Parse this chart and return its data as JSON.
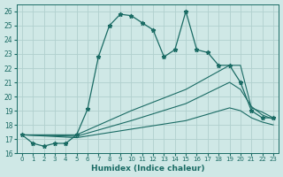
{
  "title": "",
  "xlabel": "Humidex (Indice chaleur)",
  "xlim": [
    -0.5,
    23.5
  ],
  "ylim": [
    16,
    26.5
  ],
  "xticks": [
    0,
    1,
    2,
    3,
    4,
    5,
    6,
    7,
    8,
    9,
    10,
    11,
    12,
    13,
    14,
    15,
    16,
    17,
    18,
    19,
    20,
    21,
    22,
    23
  ],
  "yticks": [
    16,
    17,
    18,
    19,
    20,
    21,
    22,
    23,
    24,
    25,
    26
  ],
  "bg_color": "#cfe8e6",
  "grid_color": "#b0d0ce",
  "line_color": "#1a6b64",
  "line1_x": [
    0,
    1,
    2,
    3,
    4,
    5,
    6,
    7,
    8,
    9,
    10,
    11,
    12,
    13,
    14,
    15,
    16,
    17,
    18,
    19,
    20,
    21,
    22,
    23
  ],
  "line1_y": [
    17.3,
    16.7,
    16.5,
    16.7,
    16.7,
    17.3,
    19.1,
    22.8,
    25.0,
    25.8,
    25.7,
    25.2,
    24.7,
    22.8,
    23.3,
    26.0,
    23.3,
    23.1,
    22.2,
    22.2,
    21.0,
    19.0,
    18.5,
    18.5
  ],
  "line2_x": [
    0,
    5,
    10,
    15,
    19,
    20,
    21,
    22,
    23
  ],
  "line2_y": [
    17.3,
    17.3,
    19.0,
    20.5,
    22.2,
    22.2,
    19.2,
    18.9,
    18.5
  ],
  "line3_x": [
    0,
    5,
    10,
    15,
    19,
    20,
    21,
    22,
    23
  ],
  "line3_y": [
    17.3,
    17.2,
    18.3,
    19.5,
    21.0,
    20.5,
    19.3,
    18.7,
    18.4
  ],
  "line4_x": [
    0,
    5,
    10,
    15,
    19,
    20,
    21,
    22,
    23
  ],
  "line4_y": [
    17.3,
    17.1,
    17.7,
    18.3,
    19.2,
    19.0,
    18.5,
    18.2,
    18.0
  ]
}
